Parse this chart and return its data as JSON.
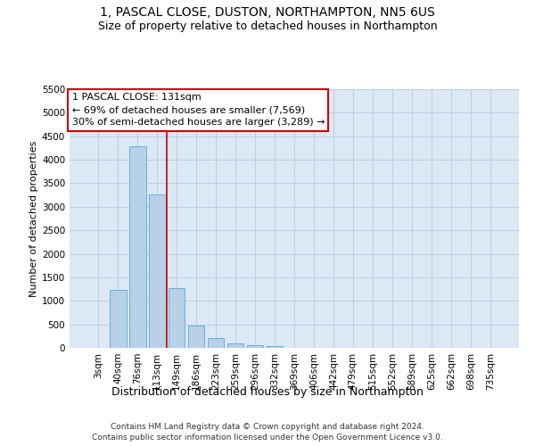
{
  "title": "1, PASCAL CLOSE, DUSTON, NORTHAMPTON, NN5 6US",
  "subtitle": "Size of property relative to detached houses in Northampton",
  "xlabel": "Distribution of detached houses by size in Northampton",
  "ylabel": "Number of detached properties",
  "footer_line1": "Contains HM Land Registry data © Crown copyright and database right 2024.",
  "footer_line2": "Contains public sector information licensed under the Open Government Licence v3.0.",
  "annotation_title": "1 PASCAL CLOSE: 131sqm",
  "annotation_line2": "← 69% of detached houses are smaller (7,569)",
  "annotation_line3": "30% of semi-detached houses are larger (3,289) →",
  "bar_labels": [
    "3sqm",
    "40sqm",
    "76sqm",
    "113sqm",
    "149sqm",
    "186sqm",
    "223sqm",
    "259sqm",
    "296sqm",
    "332sqm",
    "369sqm",
    "406sqm",
    "442sqm",
    "479sqm",
    "515sqm",
    "552sqm",
    "589sqm",
    "625sqm",
    "662sqm",
    "698sqm",
    "735sqm"
  ],
  "bar_values": [
    0,
    1230,
    4280,
    3260,
    1280,
    480,
    200,
    100,
    60,
    40,
    0,
    0,
    0,
    0,
    0,
    0,
    0,
    0,
    0,
    0,
    0
  ],
  "bar_color": "#b8d0e8",
  "bar_edge_color": "#6baed6",
  "vline_color": "#cc0000",
  "vline_x": 3.5,
  "ylim_max": 5500,
  "yticks": [
    0,
    500,
    1000,
    1500,
    2000,
    2500,
    3000,
    3500,
    4000,
    4500,
    5000,
    5500
  ],
  "background_color": "#ffffff",
  "plot_bg_color": "#dce8f5",
  "grid_color": "#b0c4d8",
  "annotation_box_edgecolor": "#cc0000",
  "title_fontsize": 10,
  "subtitle_fontsize": 9,
  "ylabel_fontsize": 8,
  "xlabel_fontsize": 9,
  "tick_fontsize": 7.5,
  "annotation_fontsize": 8,
  "footer_fontsize": 6.5
}
